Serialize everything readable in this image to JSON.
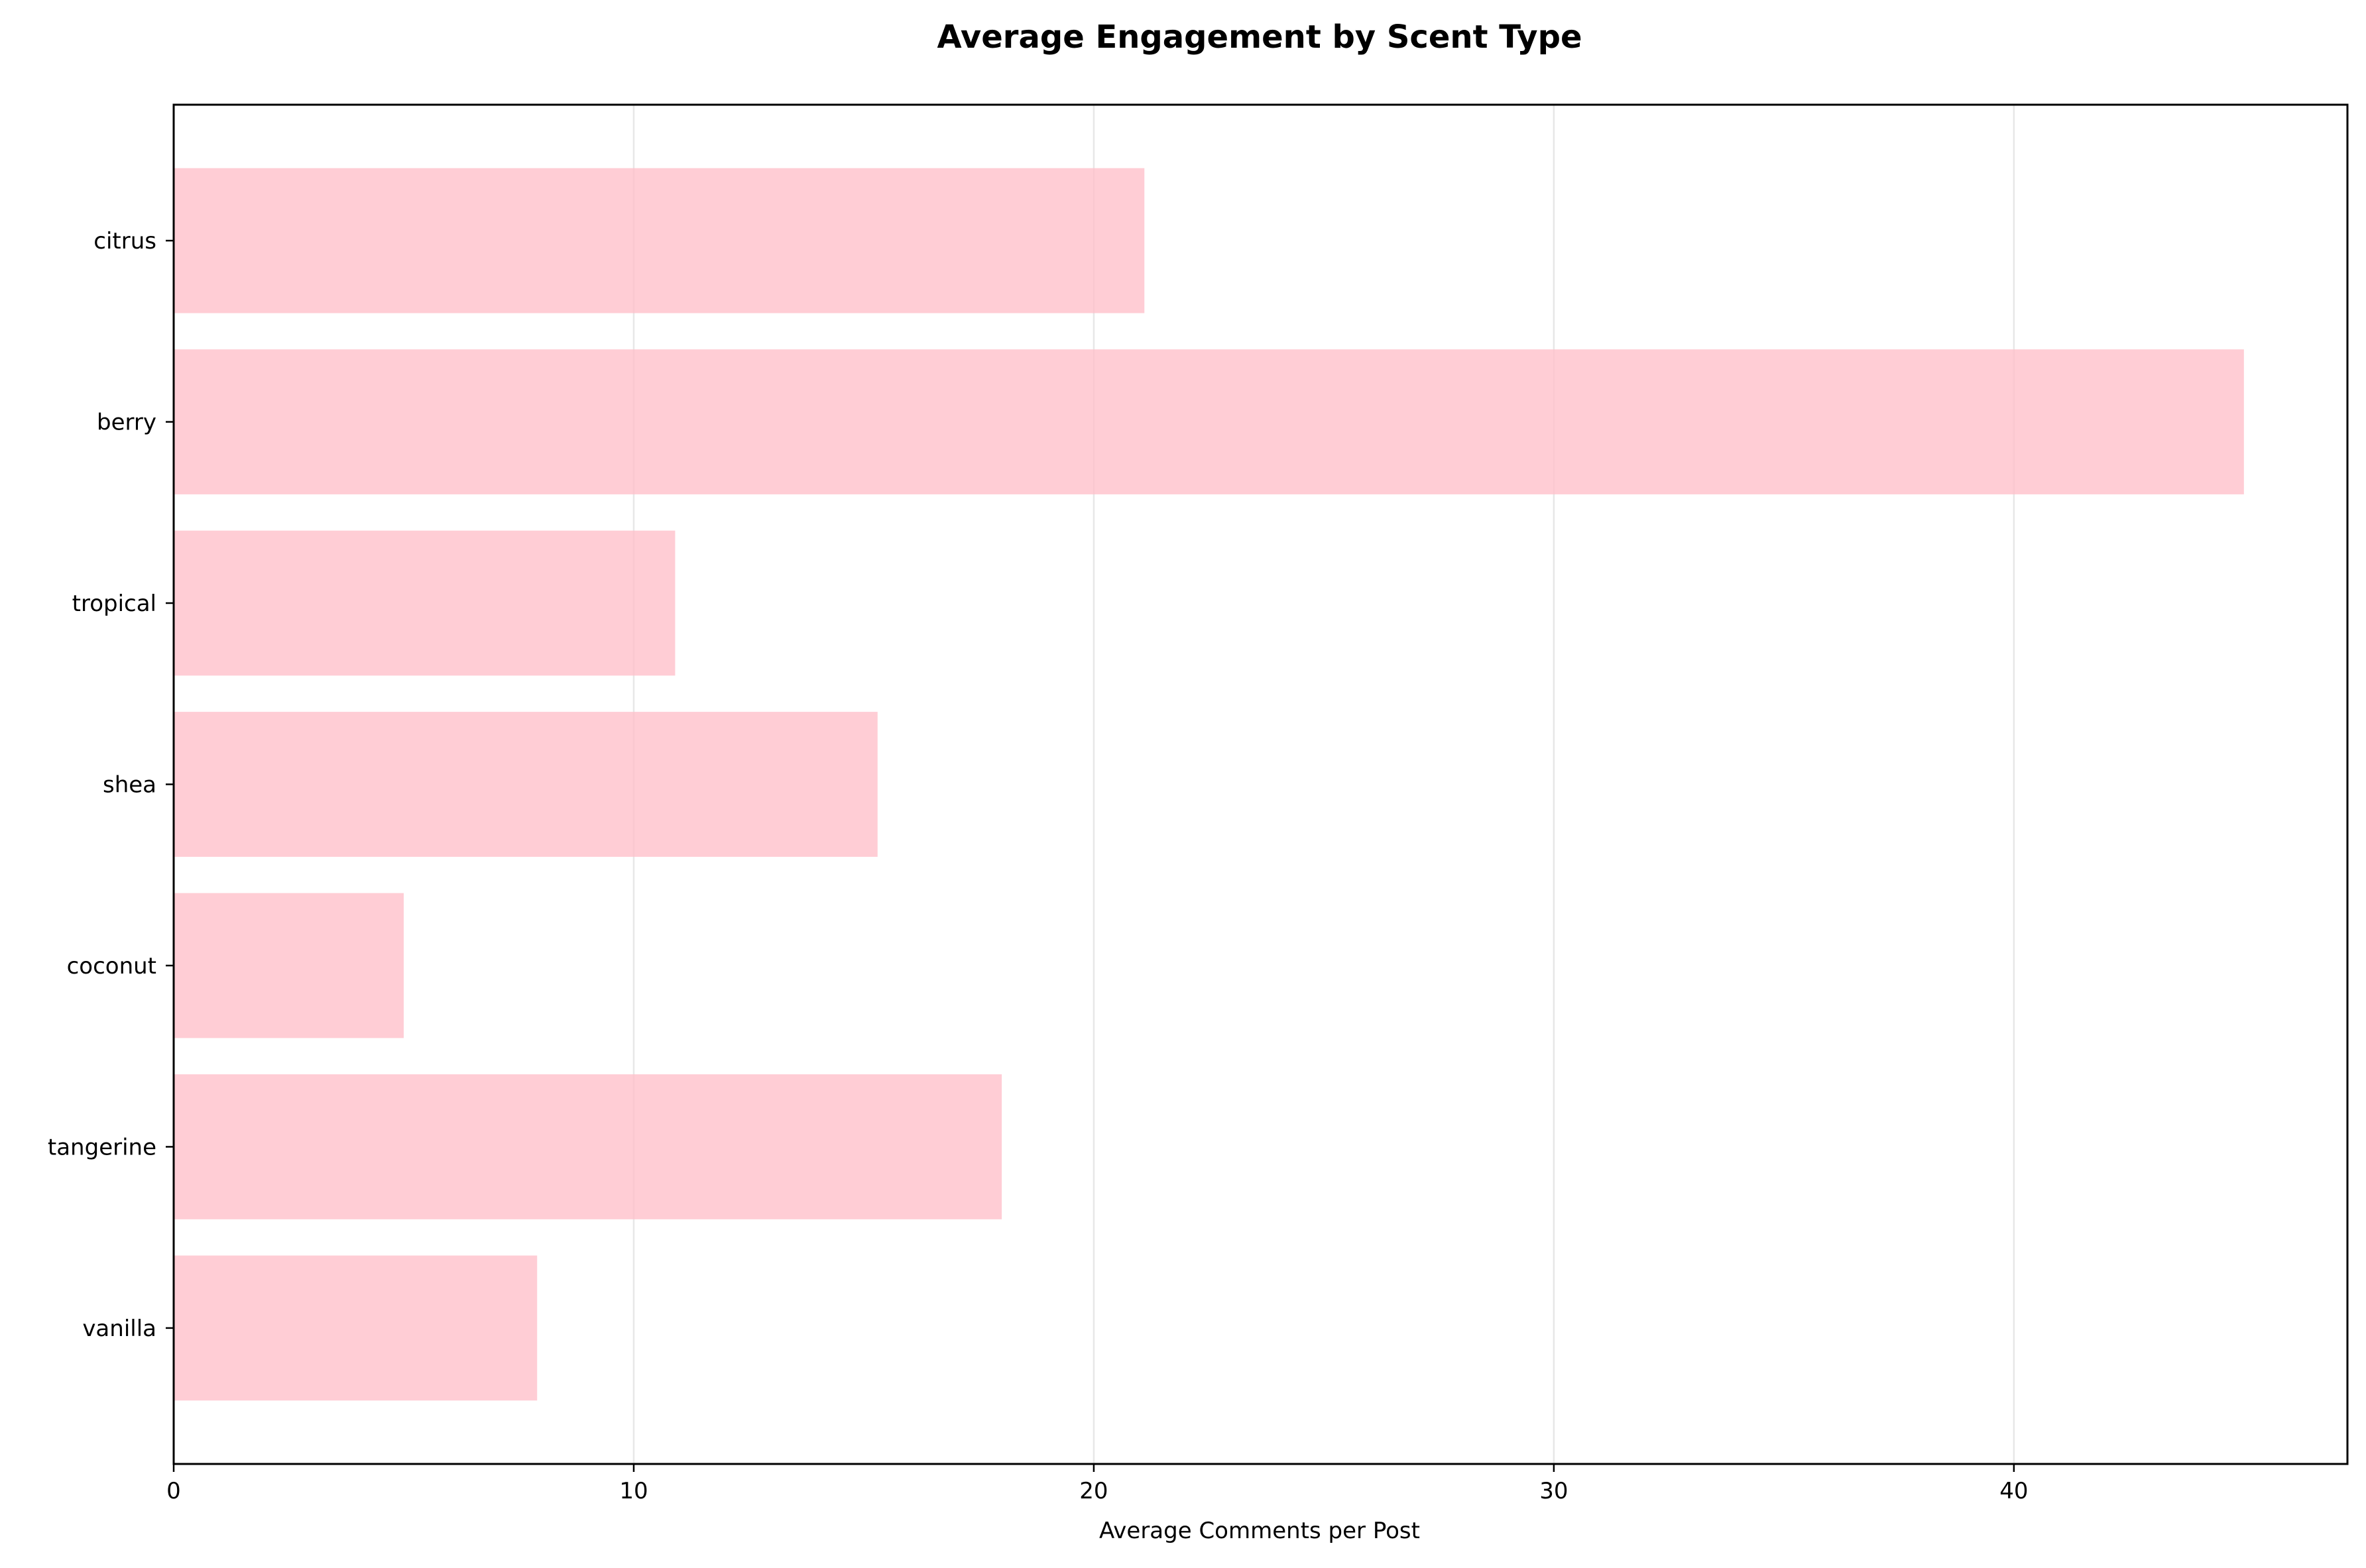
{
  "chart_data": {
    "type": "bar",
    "orientation": "horizontal",
    "title": "Average Engagement by Scent Type",
    "xlabel": "Average Comments per Post",
    "ylabel": "",
    "categories": [
      "citrus",
      "berry",
      "tropical",
      "shea",
      "coconut",
      "tangerine",
      "vanilla"
    ],
    "values": [
      21.1,
      45.0,
      10.9,
      15.3,
      5.0,
      18.0,
      7.9
    ],
    "xlim": [
      0,
      47.25
    ],
    "xticks": [
      0,
      10,
      20,
      30,
      40
    ],
    "xtick_labels": [
      "0",
      "10",
      "20",
      "30",
      "40"
    ],
    "grid": "x",
    "bar_color": "#FFC0CB",
    "bar_alpha": 0.8
  }
}
